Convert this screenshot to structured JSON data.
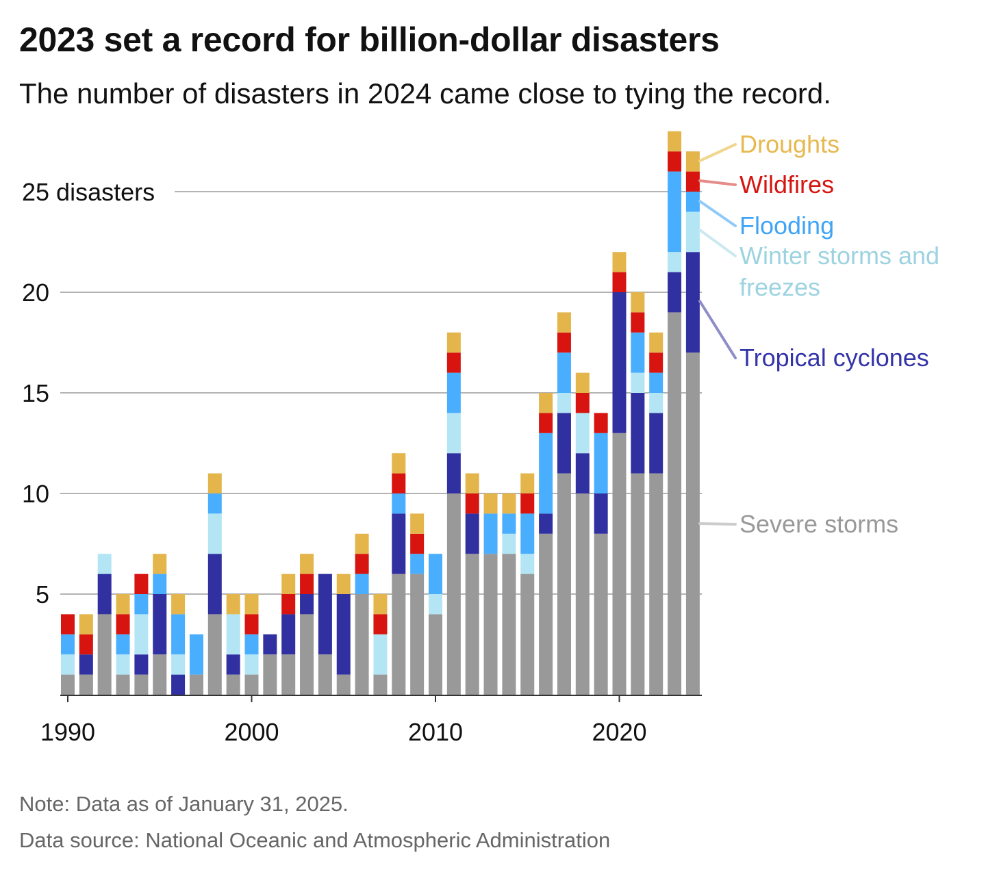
{
  "chart_data": {
    "type": "bar",
    "stacked": true,
    "title": "2023 set a record for billion-dollar disasters",
    "subtitle": "The number of disasters in 2024 came close to tying the record.",
    "note": "Note: Data as of January 31, 2025.",
    "source": "Data source: National Oceanic and Atmospheric Administration",
    "x": [
      1990,
      1991,
      1992,
      1993,
      1994,
      1995,
      1996,
      1997,
      1998,
      1999,
      2000,
      2001,
      2002,
      2003,
      2004,
      2005,
      2006,
      2007,
      2008,
      2009,
      2010,
      2011,
      2012,
      2013,
      2014,
      2015,
      2016,
      2017,
      2018,
      2019,
      2020,
      2021,
      2022,
      2023,
      2024
    ],
    "x_ticks": [
      1990,
      2000,
      2010,
      2020
    ],
    "x_tick_labels": [
      "1990",
      "2000",
      "2010",
      "2020"
    ],
    "y_ticks": [
      5,
      10,
      15,
      20,
      25
    ],
    "y_tick_labels": [
      "5",
      "10",
      "15",
      "20",
      "25 disasters"
    ],
    "ylim": [
      0,
      28
    ],
    "grid": true,
    "legend_position": "right",
    "series": [
      {
        "name": "Severe storms",
        "color": "#999999",
        "label_color": "#999999",
        "values": [
          1,
          1,
          4,
          1,
          1,
          2,
          0,
          1,
          4,
          1,
          1,
          2,
          2,
          4,
          2,
          1,
          5,
          1,
          6,
          6,
          4,
          10,
          7,
          7,
          7,
          6,
          8,
          11,
          10,
          8,
          13,
          11,
          11,
          19,
          17
        ]
      },
      {
        "name": "Tropical cyclones",
        "color": "#3030a0",
        "label_color": "#3333aa",
        "values": [
          0,
          1,
          2,
          0,
          1,
          3,
          1,
          0,
          3,
          1,
          0,
          1,
          2,
          1,
          4,
          4,
          0,
          0,
          3,
          0,
          0,
          2,
          2,
          0,
          0,
          0,
          1,
          3,
          2,
          2,
          7,
          4,
          3,
          2,
          5
        ]
      },
      {
        "name": "Winter storms and freezes",
        "color": "#b3e5f5",
        "label_color": "#9dd3e0",
        "values": [
          1,
          0,
          1,
          1,
          2,
          0,
          1,
          0,
          2,
          2,
          1,
          0,
          0,
          0,
          0,
          0,
          0,
          2,
          0,
          0,
          1,
          2,
          0,
          0,
          1,
          1,
          0,
          1,
          2,
          0,
          0,
          1,
          1,
          1,
          2
        ]
      },
      {
        "name": "Flooding",
        "color": "#4aaeff",
        "label_color": "#3fa4f8",
        "values": [
          1,
          0,
          0,
          1,
          1,
          1,
          2,
          2,
          1,
          0,
          1,
          0,
          0,
          0,
          0,
          0,
          1,
          0,
          1,
          1,
          2,
          2,
          0,
          2,
          1,
          2,
          4,
          2,
          0,
          3,
          0,
          2,
          1,
          4,
          1
        ]
      },
      {
        "name": "Wildfires",
        "color": "#d7140f",
        "label_color": "#d7140f",
        "values": [
          1,
          1,
          0,
          1,
          1,
          0,
          0,
          0,
          0,
          0,
          1,
          0,
          1,
          1,
          0,
          0,
          1,
          1,
          1,
          1,
          0,
          1,
          1,
          0,
          0,
          1,
          1,
          1,
          1,
          1,
          1,
          1,
          1,
          1,
          1
        ]
      },
      {
        "name": "Droughts",
        "color": "#e3b54a",
        "label_color": "#e6b94e",
        "values": [
          0,
          1,
          0,
          1,
          0,
          1,
          1,
          0,
          1,
          1,
          1,
          0,
          1,
          1,
          0,
          1,
          1,
          1,
          1,
          1,
          0,
          1,
          1,
          1,
          1,
          1,
          1,
          1,
          1,
          0,
          1,
          1,
          1,
          1,
          1
        ]
      }
    ],
    "legend": [
      {
        "lines": [
          "Droughts"
        ],
        "color": "#e6b94e",
        "line_color": "#f0d68f"
      },
      {
        "lines": [
          "Wildfires"
        ],
        "color": "#d7140f",
        "line_color": "#e58c8a"
      },
      {
        "lines": [
          "Flooding"
        ],
        "color": "#3fa4f8",
        "line_color": "#8fcaf8"
      },
      {
        "lines": [
          "Winter storms and",
          "freezes"
        ],
        "color": "#9dd3e0",
        "line_color": "#cce9f1"
      },
      {
        "lines": [
          "Tropical cyclones"
        ],
        "color": "#3333aa",
        "line_color": "#8d8dc8"
      },
      {
        "lines": [
          "Severe storms"
        ],
        "color": "#999999",
        "line_color": "#cccccc"
      }
    ]
  }
}
